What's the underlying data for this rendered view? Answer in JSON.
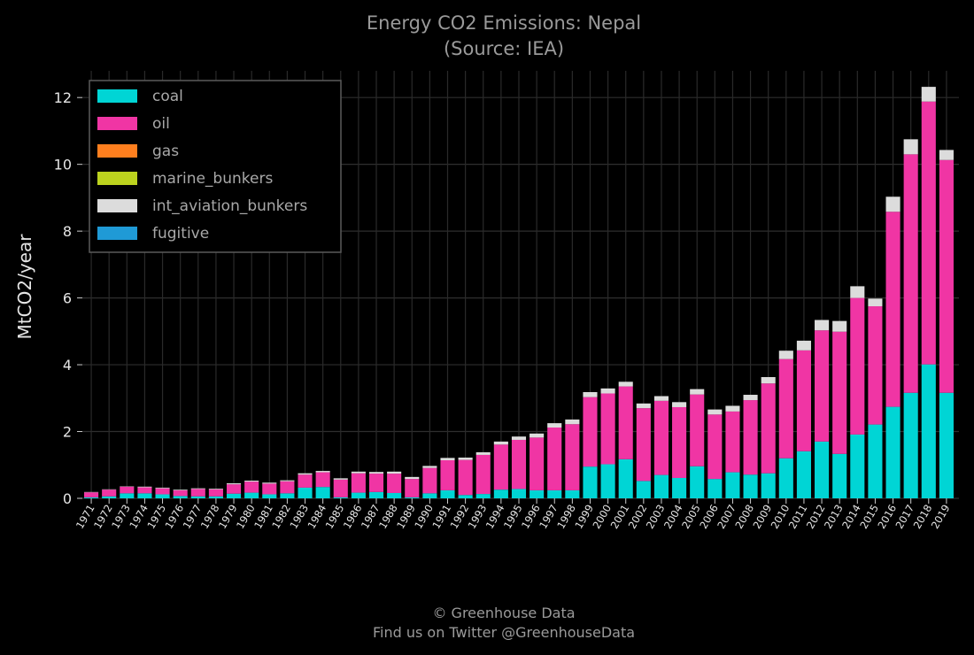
{
  "chart_data": {
    "type": "bar",
    "stacked": true,
    "title": "Energy CO2 Emissions: Nepal",
    "subtitle": "(Source: IEA)",
    "xlabel": "",
    "ylabel": "MtCO2/year",
    "ylim": [
      0,
      12.8
    ],
    "yticks": [
      0,
      2,
      4,
      6,
      8,
      10,
      12
    ],
    "grid": true,
    "legend_position": "top-left",
    "categories": [
      "1971",
      "1972",
      "1973",
      "1974",
      "1975",
      "1976",
      "1977",
      "1978",
      "1979",
      "1980",
      "1981",
      "1982",
      "1983",
      "1984",
      "1985",
      "1986",
      "1987",
      "1988",
      "1989",
      "1990",
      "1991",
      "1992",
      "1993",
      "1994",
      "1995",
      "1996",
      "1997",
      "1998",
      "1999",
      "2000",
      "2001",
      "2002",
      "2003",
      "2004",
      "2005",
      "2006",
      "2007",
      "2008",
      "2009",
      "2010",
      "2011",
      "2012",
      "2013",
      "2014",
      "2015",
      "2016",
      "2017",
      "2018",
      "2019"
    ],
    "series": [
      {
        "name": "coal",
        "color": "#00d5d5",
        "values": [
          0.03,
          0.06,
          0.15,
          0.15,
          0.12,
          0.07,
          0.06,
          0.06,
          0.14,
          0.17,
          0.12,
          0.15,
          0.32,
          0.34,
          0.03,
          0.17,
          0.19,
          0.16,
          0.03,
          0.15,
          0.24,
          0.1,
          0.13,
          0.26,
          0.28,
          0.24,
          0.24,
          0.24,
          0.95,
          1.02,
          1.17,
          0.52,
          0.7,
          0.61,
          0.96,
          0.58,
          0.78,
          0.71,
          0.75,
          1.2,
          1.41,
          1.7,
          1.33,
          1.91,
          2.21,
          2.74,
          3.16,
          4.01,
          3.16
        ]
      },
      {
        "name": "oil",
        "color": "#f035a4",
        "values": [
          0.15,
          0.2,
          0.2,
          0.18,
          0.18,
          0.17,
          0.22,
          0.21,
          0.28,
          0.33,
          0.32,
          0.36,
          0.39,
          0.44,
          0.53,
          0.58,
          0.55,
          0.58,
          0.55,
          0.76,
          0.9,
          1.05,
          1.17,
          1.35,
          1.47,
          1.58,
          1.88,
          1.98,
          2.08,
          2.12,
          2.18,
          2.18,
          2.22,
          2.12,
          2.15,
          1.93,
          1.82,
          2.23,
          2.69,
          2.97,
          3.02,
          3.33,
          3.66,
          4.09,
          3.54,
          5.84,
          7.14,
          7.87,
          6.97
        ]
      },
      {
        "name": "gas",
        "color": "#ff7f1e",
        "values": [
          0,
          0,
          0,
          0,
          0,
          0,
          0,
          0,
          0,
          0,
          0,
          0,
          0,
          0,
          0,
          0,
          0,
          0,
          0,
          0,
          0,
          0,
          0,
          0,
          0,
          0,
          0,
          0,
          0,
          0,
          0,
          0,
          0,
          0,
          0,
          0,
          0,
          0,
          0,
          0,
          0,
          0,
          0,
          0,
          0,
          0,
          0,
          0,
          0
        ]
      },
      {
        "name": "marine_bunkers",
        "color": "#bcd21e",
        "values": [
          0,
          0,
          0,
          0,
          0,
          0,
          0,
          0,
          0,
          0,
          0,
          0,
          0,
          0,
          0,
          0,
          0,
          0,
          0,
          0,
          0,
          0,
          0,
          0,
          0,
          0,
          0,
          0,
          0,
          0,
          0,
          0,
          0,
          0,
          0,
          0,
          0,
          0,
          0,
          0,
          0,
          0,
          0,
          0,
          0,
          0,
          0,
          0,
          0
        ]
      },
      {
        "name": "int_aviation_bunkers",
        "color": "#dcdcdc",
        "values": [
          0.01,
          0.01,
          0.01,
          0.02,
          0.02,
          0.02,
          0.02,
          0.02,
          0.03,
          0.03,
          0.03,
          0.03,
          0.04,
          0.04,
          0.04,
          0.05,
          0.05,
          0.06,
          0.06,
          0.06,
          0.07,
          0.07,
          0.08,
          0.09,
          0.1,
          0.12,
          0.13,
          0.14,
          0.15,
          0.15,
          0.14,
          0.14,
          0.14,
          0.15,
          0.16,
          0.15,
          0.17,
          0.16,
          0.19,
          0.25,
          0.29,
          0.31,
          0.32,
          0.35,
          0.23,
          0.45,
          0.45,
          0.44,
          0.3
        ]
      },
      {
        "name": "fugitive",
        "color": "#1f9ad6",
        "values": [
          0,
          0,
          0,
          0,
          0,
          0,
          0,
          0,
          0,
          0,
          0,
          0,
          0,
          0,
          0,
          0,
          0,
          0,
          0,
          0,
          0,
          0,
          0,
          0,
          0,
          0,
          0,
          0,
          0,
          0,
          0,
          0,
          0,
          0,
          0,
          0,
          0,
          0,
          0,
          0,
          0,
          0,
          0,
          0,
          0,
          0,
          0,
          0,
          0
        ]
      }
    ]
  },
  "footer": {
    "line1": "© Greenhouse Data",
    "line2": "Find us on Twitter @GreenhouseData"
  }
}
